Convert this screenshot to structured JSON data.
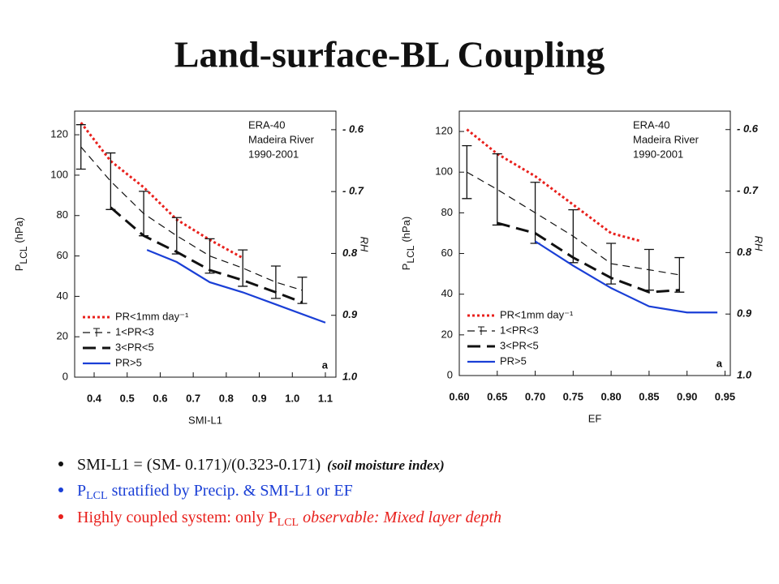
{
  "title": "Land-surface-BL Coupling",
  "chart_data": [
    {
      "type": "line",
      "x_label": "SMI-L1",
      "y_label": {
        "main": "P",
        "sub": "LCL",
        "unit": "(hPa)"
      },
      "y2_label": "RH",
      "annotation": [
        "ERA-40",
        "Madeira River",
        "1990-2001"
      ],
      "panel_label": "a",
      "xlim": [
        0.341,
        1.132
      ],
      "xticks": [
        0.4,
        0.5,
        0.6,
        0.7,
        0.8,
        0.9,
        {
          "value": 1.0,
          "label": "1.0"
        },
        1.1
      ],
      "ylim": [
        0,
        131.7
      ],
      "yticks": [
        0,
        20,
        40,
        60,
        80,
        100,
        120
      ],
      "y2lim": [
        1.0,
        0.57
      ],
      "y2ticks": [
        {
          "value": 0.6,
          "label": "- 0.6"
        },
        {
          "value": 0.7,
          "label": "- 0.7"
        },
        0.8,
        0.9,
        {
          "value": 1.0,
          "label": "1.0"
        }
      ],
      "series": [
        {
          "name": "PR<1mm day⁻¹",
          "color": "#e8201c",
          "line_style": "dotted",
          "x": [
            0.36,
            0.45,
            0.55,
            0.65,
            0.75,
            0.85
          ],
          "values": [
            126,
            107,
            94,
            78,
            68,
            59
          ]
        },
        {
          "name": "1<PR<3",
          "color": "#111111",
          "line_style": "dashed",
          "x": [
            0.36,
            0.45,
            0.55,
            0.65,
            0.75,
            0.85,
            0.95,
            1.03
          ],
          "values": [
            114,
            97,
            81,
            70,
            60,
            54,
            47,
            43
          ],
          "errors": [
            11,
            14,
            11,
            9,
            8.5,
            9,
            8,
            6.5
          ]
        },
        {
          "name": "3<PR<5",
          "color": "#111111",
          "line_style": "longdash",
          "x": [
            0.45,
            0.55,
            0.65,
            0.75,
            0.85,
            0.95,
            1.03
          ],
          "values": [
            84,
            70,
            62,
            53,
            48,
            42,
            37
          ]
        },
        {
          "name": "PR>5",
          "color": "#1a3fd6",
          "line_style": "solid",
          "x": [
            0.56,
            0.65,
            0.75,
            0.85,
            0.95,
            1.1
          ],
          "values": [
            63,
            57,
            47,
            42,
            36,
            27
          ]
        }
      ]
    },
    {
      "type": "line",
      "x_label": "EF",
      "y_label": {
        "main": "P",
        "sub": "LCL",
        "unit": "(hPa)"
      },
      "y2_label": "RH",
      "annotation": [
        "ERA-40",
        "Madeira River",
        "1990-2001"
      ],
      "panel_label": "a",
      "xlim": [
        0.6,
        0.957
      ],
      "xticks": [
        {
          "value": 0.6,
          "label": "0.60"
        },
        0.65,
        {
          "value": 0.7,
          "label": "0.70"
        },
        0.75,
        {
          "value": 0.8,
          "label": "0.80"
        },
        0.85,
        {
          "value": 0.9,
          "label": "0.90"
        },
        0.95
      ],
      "ylim": [
        0,
        130
      ],
      "yticks": [
        0,
        20,
        40,
        60,
        80,
        100,
        120
      ],
      "y2lim": [
        1.0,
        0.57
      ],
      "y2ticks": [
        {
          "value": 0.6,
          "label": "- 0.6"
        },
        {
          "value": 0.7,
          "label": "- 0.7"
        },
        0.8,
        0.9,
        {
          "value": 1.0,
          "label": "1.0"
        }
      ],
      "series": [
        {
          "name": "PR<1mm day⁻¹",
          "color": "#e8201c",
          "line_style": "dotted",
          "x": [
            0.61,
            0.65,
            0.7,
            0.75,
            0.8,
            0.84
          ],
          "values": [
            121,
            109,
            98,
            84,
            70,
            66
          ]
        },
        {
          "name": "1<PR<3",
          "color": "#111111",
          "line_style": "dashed",
          "x": [
            0.61,
            0.65,
            0.7,
            0.75,
            0.8,
            0.85,
            0.89
          ],
          "values": [
            100,
            91.5,
            80,
            68.5,
            55,
            52,
            49.5
          ],
          "errors": [
            13,
            17.5,
            15,
            13,
            10,
            10,
            8.5
          ]
        },
        {
          "name": "3<PR<5",
          "color": "#111111",
          "line_style": "longdash",
          "x": [
            0.65,
            0.7,
            0.75,
            0.8,
            0.85,
            0.89
          ],
          "values": [
            75,
            70,
            58,
            48,
            41,
            42
          ]
        },
        {
          "name": "PR>5",
          "color": "#1a3fd6",
          "line_style": "solid",
          "x": [
            0.7,
            0.75,
            0.8,
            0.85,
            0.9,
            0.94
          ],
          "values": [
            66,
            54,
            43,
            34,
            31,
            31
          ]
        }
      ]
    }
  ],
  "bullets": [
    {
      "text": "SMI-L1 = (SM- 0.171)/(0.323-0.171)",
      "note": "(soil moisture index)"
    },
    {
      "main": "P",
      "sub": "LCL",
      "text": " stratified by Precip. & SMI-L1 or EF"
    },
    {
      "main": "Highly coupled system: only P",
      "sub": "LCL",
      "note": " observable: Mixed layer depth"
    }
  ]
}
